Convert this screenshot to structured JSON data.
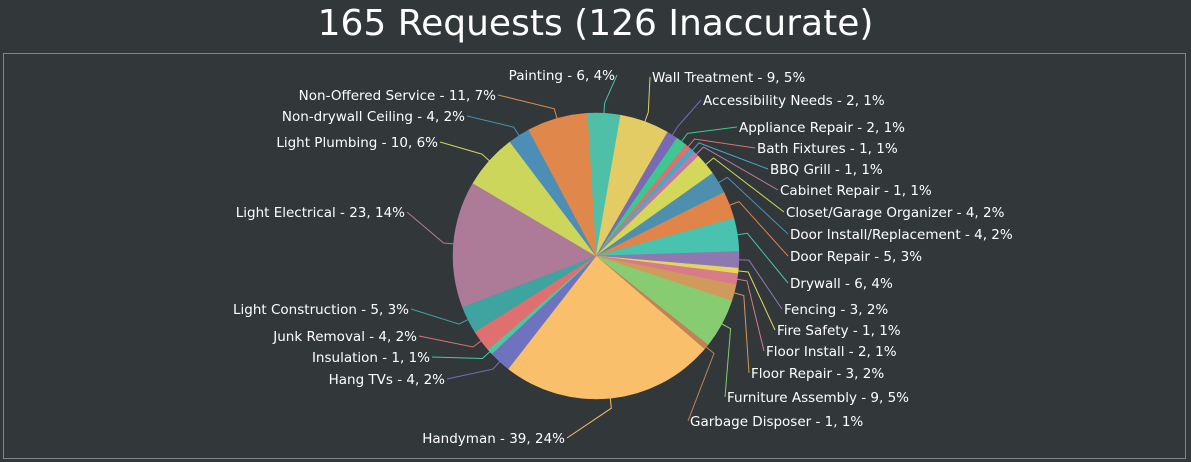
{
  "title": "165 Requests (126 Inaccurate)",
  "chart_data": {
    "type": "pie",
    "title": "165 Requests (126 Inaccurate)",
    "legend": "none",
    "slices": [
      {
        "label": "Painting - 6, 4%",
        "name": "Painting",
        "value": 6,
        "percent": 4,
        "color": "#4fbfa8"
      },
      {
        "label": "Wall Treatment - 9, 5%",
        "name": "Wall Treatment",
        "value": 9,
        "percent": 5,
        "color": "#e4cc64"
      },
      {
        "label": "Accessibility Needs - 2, 1%",
        "name": "Accessibility Needs",
        "value": 2,
        "percent": 1,
        "color": "#7a6ab5"
      },
      {
        "label": "Appliance Repair - 2, 1%",
        "name": "Appliance Repair",
        "value": 2,
        "percent": 1,
        "color": "#3dc88f"
      },
      {
        "label": "Bath Fixtures - 1, 1%",
        "name": "Bath Fixtures",
        "value": 1,
        "percent": 1,
        "color": "#e16f6f"
      },
      {
        "label": "BBQ Grill - 1, 1%",
        "name": "BBQ Grill",
        "value": 1,
        "percent": 1,
        "color": "#4aa8c7"
      },
      {
        "label": "Cabinet Repair - 1, 1%",
        "name": "Cabinet Repair",
        "value": 1,
        "percent": 1,
        "color": "#c47aa0"
      },
      {
        "label": "Closet/Garage Organizer - 4, 2%",
        "name": "Closet/Garage Organizer",
        "value": 4,
        "percent": 2,
        "color": "#d3d85a"
      },
      {
        "label": "Door Install/Replacement - 4, 2%",
        "name": "Door Install/Replacement",
        "value": 4,
        "percent": 2,
        "color": "#4e8fb0"
      },
      {
        "label": "Door Repair - 5, 3%",
        "name": "Door Repair",
        "value": 5,
        "percent": 3,
        "color": "#e0844a"
      },
      {
        "label": "Drywall - 6, 4%",
        "name": "Drywall",
        "value": 6,
        "percent": 4,
        "color": "#49c3b0"
      },
      {
        "label": "Fencing - 3, 2%",
        "name": "Fencing",
        "value": 3,
        "percent": 2,
        "color": "#8f78b0"
      },
      {
        "label": "Fire Safety - 1, 1%",
        "name": "Fire Safety",
        "value": 1,
        "percent": 1,
        "color": "#e6d55c"
      },
      {
        "label": "Floor Install - 2, 1%",
        "name": "Floor Install",
        "value": 2,
        "percent": 1,
        "color": "#d77a8a"
      },
      {
        "label": "Floor Repair - 3, 2%",
        "name": "Floor Repair",
        "value": 3,
        "percent": 2,
        "color": "#cf9a5c"
      },
      {
        "label": "Furniture Assembly - 9, 5%",
        "name": "Furniture Assembly",
        "value": 9,
        "percent": 5,
        "color": "#87cc71"
      },
      {
        "label": "Garbage Disposer - 1, 1%",
        "name": "Garbage Disposer",
        "value": 1,
        "percent": 1,
        "color": "#c08454"
      },
      {
        "label": "Handyman - 39, 24%",
        "name": "Handyman",
        "value": 39,
        "percent": 24,
        "color": "#f9bf6a"
      },
      {
        "label": "Hang TVs - 4, 2%",
        "name": "Hang TVs",
        "value": 4,
        "percent": 2,
        "color": "#6f73bf"
      },
      {
        "label": "Insulation - 1, 1%",
        "name": "Insulation",
        "value": 1,
        "percent": 1,
        "color": "#4ac9a0"
      },
      {
        "label": "Junk Removal - 4, 2%",
        "name": "Junk Removal",
        "value": 4,
        "percent": 2,
        "color": "#e07070"
      },
      {
        "label": "Light Construction - 5, 3%",
        "name": "Light Construction",
        "value": 5,
        "percent": 3,
        "color": "#3fa3a0"
      },
      {
        "label": "Light Electrical - 23, 14%",
        "name": "Light Electrical",
        "value": 23,
        "percent": 14,
        "color": "#ad7b98"
      },
      {
        "label": "Light Plumbing - 10, 6%",
        "name": "Light Plumbing",
        "value": 10,
        "percent": 6,
        "color": "#ccd65a"
      },
      {
        "label": "Non-drywall Ceiling - 4, 2%",
        "name": "Non-drywall Ceiling",
        "value": 4,
        "percent": 2,
        "color": "#4c8eb5"
      },
      {
        "label": "Non-Offered Service - 11, 7%",
        "name": "Non-Offered Service",
        "value": 11,
        "percent": 7,
        "color": "#e0884c"
      }
    ]
  }
}
